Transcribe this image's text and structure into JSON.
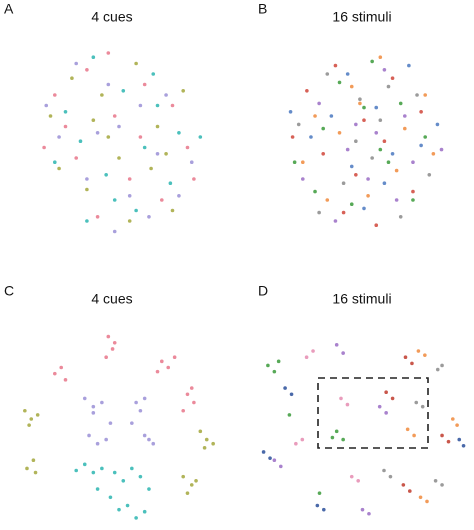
{
  "chart_data": [
    {
      "type": "scatter",
      "panel": "A",
      "title": "4 cues",
      "xlim": [
        0,
        100
      ],
      "ylim": [
        0,
        100
      ],
      "series": [
        {
          "color": "#e8758a",
          "x": [
            20,
            35,
            48,
            62,
            75,
            82,
            30,
            55,
            70,
            40,
            25,
            60,
            45,
            85,
            15
          ],
          "y": [
            30,
            18,
            40,
            25,
            35,
            55,
            60,
            70,
            80,
            88,
            45,
            50,
            10,
            70,
            55
          ]
        },
        {
          "color": "#a3a73c",
          "x": [
            28,
            42,
            58,
            68,
            80,
            18,
            35,
            50,
            65,
            75,
            45,
            22,
            55,
            38,
            72
          ],
          "y": [
            22,
            30,
            15,
            45,
            28,
            40,
            75,
            60,
            65,
            85,
            50,
            65,
            90,
            42,
            58
          ]
        },
        {
          "color": "#2bb5b0",
          "x": [
            25,
            38,
            52,
            66,
            78,
            32,
            48,
            62,
            74,
            20,
            44,
            58,
            88,
            35,
            68
          ],
          "y": [
            38,
            12,
            28,
            20,
            48,
            52,
            80,
            55,
            72,
            62,
            68,
            85,
            50,
            90,
            35
          ]
        },
        {
          "color": "#9a8fd6",
          "x": [
            30,
            45,
            60,
            72,
            84,
            22,
            40,
            55,
            68,
            78,
            35,
            50,
            64,
            16,
            48
          ],
          "y": [
            15,
            25,
            35,
            30,
            62,
            50,
            48,
            78,
            58,
            78,
            70,
            45,
            88,
            35,
            95
          ]
        }
      ]
    },
    {
      "type": "scatter",
      "panel": "B",
      "title": "16 stimuli",
      "xlim": [
        0,
        100
      ],
      "ylim": [
        0,
        100
      ],
      "series": [
        {
          "color": "#d0453a",
          "x": [
            22,
            36,
            50,
            64,
            78,
            30,
            46,
            60,
            74,
            40,
            56,
            15
          ],
          "y": [
            28,
            16,
            42,
            22,
            38,
            58,
            68,
            52,
            76,
            86,
            92,
            50
          ]
        },
        {
          "color": "#f08a3c",
          "x": [
            26,
            44,
            58,
            70,
            84,
            20,
            38,
            52,
            66,
            48,
            32,
            80
          ],
          "y": [
            40,
            26,
            12,
            46,
            58,
            62,
            48,
            78,
            66,
            34,
            80,
            30
          ]
        },
        {
          "color": "#8a8a8a",
          "x": [
            32,
            48,
            62,
            76,
            18,
            40,
            54,
            68,
            82,
            28,
            58,
            46
          ],
          "y": [
            20,
            32,
            26,
            30,
            44,
            72,
            60,
            88,
            68,
            86,
            42,
            52
          ]
        },
        {
          "color": "#4a78c0",
          "x": [
            24,
            42,
            56,
            72,
            86,
            34,
            50,
            64,
            78,
            44,
            60,
            14
          ],
          "y": [
            50,
            20,
            36,
            16,
            44,
            40,
            84,
            58,
            54,
            64,
            72,
            38
          ]
        },
        {
          "color": "#9a6cc4",
          "x": [
            28,
            46,
            60,
            74,
            36,
            52,
            66,
            20,
            42,
            56,
            70,
            88
          ],
          "y": [
            34,
            44,
            18,
            62,
            90,
            70,
            80,
            70,
            56,
            48,
            40,
            56
          ]
        },
        {
          "color": "#3a9a3a",
          "x": [
            38,
            54,
            68,
            80,
            26,
            44,
            62,
            30,
            50,
            74,
            58,
            16
          ],
          "y": [
            24,
            14,
            34,
            50,
            76,
            82,
            62,
            46,
            36,
            80,
            56,
            62
          ]
        }
      ]
    },
    {
      "type": "scatter",
      "panel": "C",
      "title": "4 cues",
      "xlim": [
        0,
        100
      ],
      "ylim": [
        0,
        100
      ],
      "series": [
        {
          "color": "#e8758a",
          "x": [
            20,
            23,
            25,
            45,
            47,
            44,
            48,
            70,
            73,
            76,
            82,
            85,
            80,
            84,
            68
          ],
          "y": [
            28,
            25,
            31,
            10,
            16,
            20,
            13,
            22,
            25,
            20,
            38,
            42,
            46,
            35,
            27
          ]
        },
        {
          "color": "#9a8fd6",
          "x": [
            34,
            38,
            42,
            38,
            58,
            62,
            60,
            36,
            40,
            44,
            62,
            66,
            64,
            46,
            56
          ],
          "y": [
            40,
            44,
            42,
            47,
            42,
            40,
            46,
            58,
            62,
            60,
            58,
            62,
            60,
            52,
            52
          ]
        },
        {
          "color": "#a3a73c",
          "x": [
            6,
            9,
            12,
            8,
            10,
            7,
            11,
            88,
            91,
            94,
            90,
            80,
            84,
            82,
            86
          ],
          "y": [
            46,
            50,
            48,
            53,
            70,
            74,
            76,
            56,
            60,
            62,
            64,
            78,
            82,
            86,
            80
          ]
        },
        {
          "color": "#2bb5b0",
          "x": [
            30,
            34,
            38,
            42,
            48,
            52,
            56,
            60,
            64,
            46,
            50,
            54,
            58,
            62,
            40
          ],
          "y": [
            75,
            72,
            76,
            74,
            76,
            80,
            74,
            78,
            84,
            88,
            94,
            92,
            98,
            95,
            84
          ]
        }
      ]
    },
    {
      "type": "scatter",
      "panel": "D",
      "title": "16 stimuli",
      "xlim": [
        0,
        100
      ],
      "ylim": [
        0,
        100
      ],
      "series": [
        {
          "color": "#3a9a3a",
          "x": [
            6,
            9,
            11,
            38,
            41,
            36,
            16,
            30
          ],
          "y": [
            24,
            27,
            22,
            56,
            60,
            59,
            48,
            86
          ]
        },
        {
          "color": "#e58bb0",
          "x": [
            24,
            27,
            40,
            43,
            19,
            22,
            45,
            48
          ],
          "y": [
            20,
            17,
            40,
            43,
            62,
            60,
            78,
            80
          ]
        },
        {
          "color": "#9a6cc4",
          "x": [
            38,
            41,
            58,
            61,
            9,
            12,
            50,
            53
          ],
          "y": [
            14,
            18,
            44,
            47,
            70,
            73,
            94,
            96
          ]
        },
        {
          "color": "#c0392b",
          "x": [
            70,
            73,
            61,
            64,
            87,
            90,
            69,
            72
          ],
          "y": [
            20,
            23,
            37,
            40,
            58,
            61,
            82,
            85
          ]
        },
        {
          "color": "#f08a3c",
          "x": [
            76,
            79,
            71,
            74,
            92,
            94,
            77,
            80
          ],
          "y": [
            17,
            19,
            55,
            58,
            50,
            53,
            88,
            90
          ]
        },
        {
          "color": "#8a8a8a",
          "x": [
            85,
            87,
            75,
            78,
            60,
            63,
            84,
            87
          ],
          "y": [
            26,
            24,
            42,
            44,
            75,
            78,
            80,
            82
          ]
        },
        {
          "color": "#2a4f9a",
          "x": [
            4,
            7,
            29,
            32,
            95,
            97,
            14,
            17
          ],
          "y": [
            66,
            69,
            92,
            94,
            60,
            63,
            35,
            38
          ]
        }
      ]
    }
  ]
}
